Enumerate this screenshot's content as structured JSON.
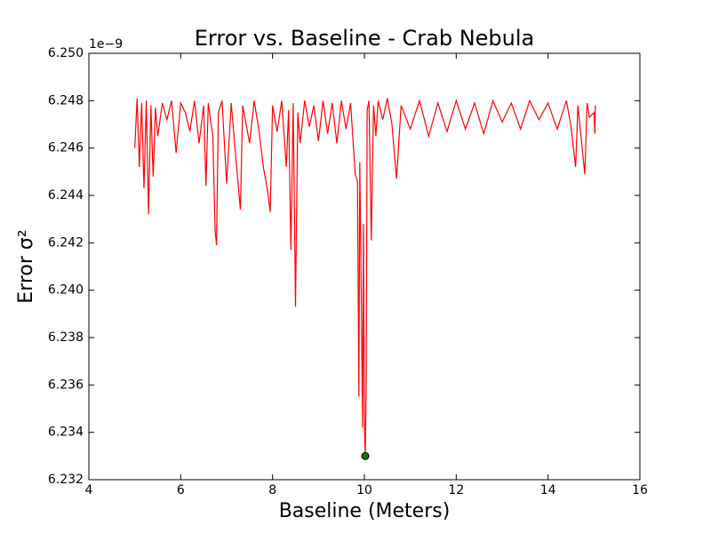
{
  "chart_data": {
    "type": "line",
    "title": "Error vs. Baseline - Crab Nebula",
    "x_label": "Baseline (Meters)",
    "y_label": "Error σ²",
    "y_offset_label": "1e−9",
    "xlim": [
      4,
      16
    ],
    "xticks": [
      4,
      6,
      8,
      10,
      12,
      14,
      16
    ],
    "ylim": [
      6.232,
      6.25
    ],
    "yticks": [
      6.232,
      6.234,
      6.236,
      6.238,
      {
        "value": 6.24,
        "label": "6.240"
      },
      6.242,
      6.244,
      6.246,
      6.248,
      {
        "value": 6.25,
        "label": "6.250"
      }
    ],
    "grid": false,
    "series": [
      {
        "color": "#ff0000",
        "x": [
          5.0,
          5.05,
          5.1,
          5.15,
          5.2,
          5.25,
          5.3,
          5.35,
          5.4,
          5.45,
          5.5,
          5.6,
          5.7,
          5.8,
          5.9,
          6.0,
          6.1,
          6.2,
          6.3,
          6.4,
          6.5,
          6.55,
          6.6,
          6.7,
          6.75,
          6.78,
          6.82,
          6.9,
          7.0,
          7.1,
          7.2,
          7.3,
          7.35,
          7.5,
          7.6,
          7.7,
          7.8,
          7.9,
          7.95,
          8.0,
          8.1,
          8.2,
          8.3,
          8.35,
          8.4,
          8.45,
          8.5,
          8.55,
          8.6,
          8.7,
          8.8,
          8.9,
          9.0,
          9.1,
          9.2,
          9.3,
          9.4,
          9.5,
          9.6,
          9.7,
          9.8,
          9.85,
          9.88,
          9.9,
          9.93,
          9.96,
          9.98,
          10.0,
          10.02,
          10.04,
          10.06,
          10.1,
          10.15,
          10.2,
          10.25,
          10.3,
          10.4,
          10.5,
          10.6,
          10.7,
          10.8,
          11.0,
          11.2,
          11.4,
          11.6,
          11.8,
          12.0,
          12.2,
          12.4,
          12.6,
          12.8,
          13.0,
          13.2,
          13.4,
          13.6,
          13.8,
          14.0,
          14.2,
          14.4,
          14.5,
          14.6,
          14.65,
          14.8,
          14.85,
          14.9,
          15.0,
          15.02,
          15.03
        ],
        "values": [
          6.246,
          6.2481,
          6.2452,
          6.2479,
          6.2443,
          6.248,
          6.2432,
          6.2478,
          6.2448,
          6.2477,
          6.2465,
          6.2479,
          6.2472,
          6.248,
          6.2458,
          6.2479,
          6.2475,
          6.2467,
          6.248,
          6.2462,
          6.2478,
          6.2444,
          6.2479,
          6.2465,
          6.2425,
          6.2419,
          6.2475,
          6.248,
          6.2445,
          6.2479,
          6.2456,
          6.2434,
          6.2478,
          6.2462,
          6.248,
          6.2468,
          6.2452,
          6.2441,
          6.2433,
          6.2478,
          6.2467,
          6.248,
          6.2452,
          6.2476,
          6.2417,
          6.2479,
          6.2393,
          6.2475,
          6.2462,
          6.248,
          6.2469,
          6.2478,
          6.2463,
          6.248,
          6.2466,
          6.2479,
          6.2462,
          6.248,
          6.2468,
          6.2479,
          6.2449,
          6.2446,
          6.2355,
          6.2454,
          6.2403,
          6.2342,
          6.2428,
          6.2345,
          6.233,
          6.2363,
          6.2476,
          6.248,
          6.2421,
          6.2478,
          6.2465,
          6.248,
          6.2472,
          6.2481,
          6.247,
          6.2447,
          6.2478,
          6.2468,
          6.248,
          6.2465,
          6.2479,
          6.2467,
          6.248,
          6.2468,
          6.2479,
          6.2466,
          6.248,
          6.2471,
          6.2479,
          6.2468,
          6.248,
          6.2472,
          6.2479,
          6.2468,
          6.248,
          6.2469,
          6.2452,
          6.2478,
          6.2449,
          6.2479,
          6.2473,
          6.2475,
          6.2466,
          6.2478
        ]
      }
    ],
    "points": {
      "color": "#008000",
      "x": [
        10.02
      ],
      "values": [
        6.233
      ]
    }
  }
}
